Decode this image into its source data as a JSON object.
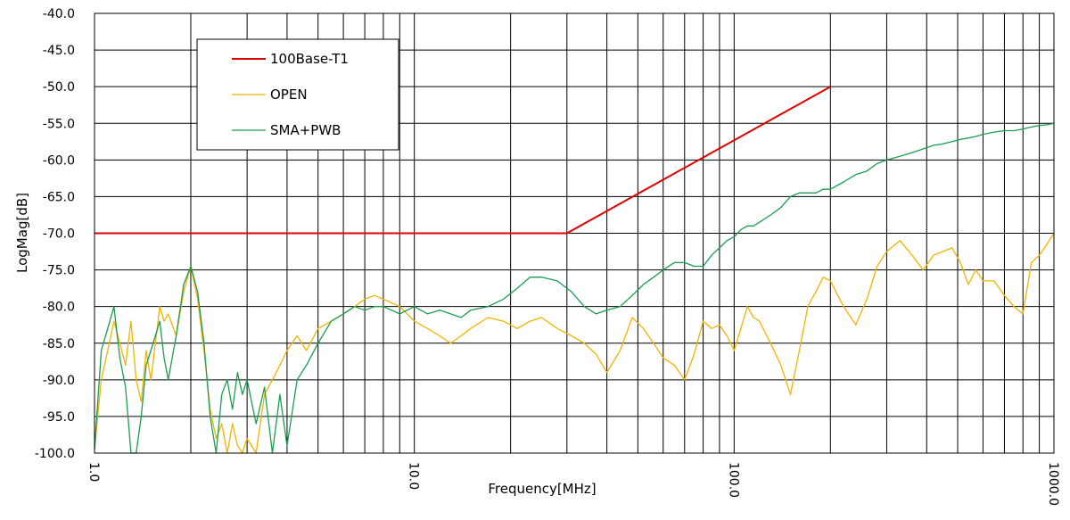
{
  "chart_data": {
    "type": "line",
    "title": "",
    "xlabel": "Frequency[MHz]",
    "ylabel": "LogMag[dB]",
    "x_scale": "log",
    "xlim": [
      1.0,
      1000.0
    ],
    "ylim": [
      -100.0,
      -40.0
    ],
    "grid": true,
    "legend_position": "top-left",
    "x_ticks": [
      {
        "value": 1,
        "label": "1.0"
      },
      {
        "value": 10,
        "label": "10.0"
      },
      {
        "value": 100,
        "label": "100.0"
      },
      {
        "value": 1000,
        "label": "1000.0"
      }
    ],
    "y_ticks": [
      {
        "value": -40,
        "label": "-40.0"
      },
      {
        "value": -45,
        "label": "-45.0"
      },
      {
        "value": -50,
        "label": "-50.0"
      },
      {
        "value": -55,
        "label": "-55.0"
      },
      {
        "value": -60,
        "label": "-60.0"
      },
      {
        "value": -65,
        "label": "-65.0"
      },
      {
        "value": -70,
        "label": "-70.0"
      },
      {
        "value": -75,
        "label": "-75.0"
      },
      {
        "value": -80,
        "label": "-80.0"
      },
      {
        "value": -85,
        "label": "-85.0"
      },
      {
        "value": -90,
        "label": "-90.0"
      },
      {
        "value": -95,
        "label": "-95.0"
      },
      {
        "value": -100,
        "label": "-100.0"
      }
    ],
    "series": [
      {
        "name": "100Base-T1",
        "color": "#e00000",
        "x": [
          1.0,
          30.0,
          200.0
        ],
        "y": [
          -70.0,
          -70.0,
          -50.0
        ]
      },
      {
        "name": "OPEN",
        "color": "#f0b400",
        "x": [
          1.0,
          1.05,
          1.1,
          1.15,
          1.2,
          1.25,
          1.3,
          1.35,
          1.4,
          1.45,
          1.5,
          1.55,
          1.6,
          1.65,
          1.7,
          1.8,
          1.9,
          2.0,
          2.1,
          2.2,
          2.3,
          2.4,
          2.5,
          2.6,
          2.7,
          2.8,
          2.9,
          3.0,
          3.2,
          3.4,
          3.6,
          3.8,
          4.0,
          4.3,
          4.6,
          5.0,
          5.5,
          6.0,
          6.5,
          7.0,
          7.5,
          8.0,
          9.0,
          10.0,
          11.0,
          12.0,
          13.0,
          14.0,
          15.0,
          17.0,
          19.0,
          21.0,
          23.0,
          25.0,
          28.0,
          31.0,
          34.0,
          37.0,
          40.0,
          44.0,
          48.0,
          52.0,
          56.0,
          60.0,
          65.0,
          70.0,
          75.0,
          80.0,
          85.0,
          90.0,
          95.0,
          100.0,
          105.0,
          110.0,
          115.0,
          120.0,
          130.0,
          140.0,
          150.0,
          160.0,
          170.0,
          180.0,
          190.0,
          200.0,
          220.0,
          240.0,
          260.0,
          280.0,
          300.0,
          330.0,
          360.0,
          390.0,
          420.0,
          450.0,
          480.0,
          510.0,
          540.0,
          570.0,
          600.0,
          650.0,
          700.0,
          750.0,
          800.0,
          850.0,
          900.0,
          950.0,
          1000.0
        ],
        "y": [
          -99.5,
          -90.0,
          -86.0,
          -82.0,
          -85.0,
          -88.0,
          -82.0,
          -90.0,
          -93.0,
          -86.0,
          -90.0,
          -85.0,
          -80.0,
          -82.0,
          -81.0,
          -84.0,
          -78.0,
          -74.5,
          -79.0,
          -86.0,
          -94.0,
          -98.0,
          -96.0,
          -100.0,
          -96.0,
          -99.0,
          -100.0,
          -98.0,
          -100.0,
          -92.0,
          -90.0,
          -88.0,
          -86.0,
          -84.0,
          -86.0,
          -83.0,
          -82.0,
          -81.0,
          -80.0,
          -79.0,
          -78.5,
          -79.0,
          -80.0,
          -82.0,
          -83.0,
          -84.0,
          -85.0,
          -84.0,
          -83.0,
          -81.5,
          -82.0,
          -83.0,
          -82.0,
          -81.5,
          -83.0,
          -84.0,
          -85.0,
          -86.5,
          -89.0,
          -86.0,
          -81.5,
          -83.0,
          -85.0,
          -87.0,
          -88.0,
          -90.0,
          -86.5,
          -82.0,
          -83.0,
          -82.5,
          -84.0,
          -86.0,
          -83.0,
          -80.0,
          -81.5,
          -82.0,
          -85.0,
          -88.0,
          -92.0,
          -86.0,
          -80.0,
          -78.0,
          -76.0,
          -76.5,
          -80.0,
          -82.5,
          -79.0,
          -74.5,
          -72.5,
          -71.0,
          -73.0,
          -75.0,
          -73.0,
          -72.5,
          -72.0,
          -74.0,
          -77.0,
          -75.0,
          -76.5,
          -76.5,
          -78.5,
          -80.0,
          -81.0,
          -74.0,
          -73.0,
          -71.5,
          -70.0
        ]
      },
      {
        "name": "SMA+PWB",
        "color": "#1a9e50",
        "x": [
          1.0,
          1.05,
          1.1,
          1.15,
          1.2,
          1.25,
          1.3,
          1.35,
          1.4,
          1.45,
          1.5,
          1.55,
          1.6,
          1.65,
          1.7,
          1.8,
          1.9,
          2.0,
          2.1,
          2.2,
          2.3,
          2.4,
          2.5,
          2.6,
          2.7,
          2.8,
          2.9,
          3.0,
          3.2,
          3.4,
          3.6,
          3.8,
          4.0,
          4.3,
          4.6,
          5.0,
          5.5,
          6.0,
          6.5,
          7.0,
          7.5,
          8.0,
          9.0,
          10.0,
          11.0,
          12.0,
          13.0,
          14.0,
          15.0,
          17.0,
          19.0,
          21.0,
          23.0,
          25.0,
          28.0,
          31.0,
          34.0,
          37.0,
          40.0,
          44.0,
          48.0,
          52.0,
          56.0,
          60.0,
          65.0,
          70.0,
          75.0,
          80.0,
          85.0,
          90.0,
          95.0,
          100.0,
          105.0,
          110.0,
          115.0,
          120.0,
          130.0,
          140.0,
          150.0,
          160.0,
          170.0,
          180.0,
          190.0,
          200.0,
          220.0,
          240.0,
          260.0,
          280.0,
          300.0,
          330.0,
          360.0,
          390.0,
          420.0,
          450.0,
          480.0,
          510.0,
          540.0,
          570.0,
          600.0,
          650.0,
          700.0,
          750.0,
          800.0,
          850.0,
          900.0,
          950.0,
          1000.0
        ],
        "y": [
          -99.5,
          -86.0,
          -83.0,
          -80.0,
          -87.0,
          -91.0,
          -100.0,
          -100.0,
          -95.0,
          -88.0,
          -86.0,
          -84.0,
          -82.0,
          -87.0,
          -90.0,
          -84.0,
          -77.0,
          -74.5,
          -78.0,
          -85.0,
          -95.0,
          -100.0,
          -92.0,
          -90.0,
          -94.0,
          -89.0,
          -92.0,
          -90.0,
          -96.0,
          -91.0,
          -100.0,
          -92.0,
          -99.0,
          -90.0,
          -88.0,
          -85.0,
          -82.0,
          -81.0,
          -80.0,
          -80.5,
          -80.0,
          -80.0,
          -81.0,
          -80.0,
          -81.0,
          -80.5,
          -81.0,
          -81.5,
          -80.5,
          -80.0,
          -79.0,
          -77.5,
          -76.0,
          -76.0,
          -76.5,
          -78.0,
          -80.0,
          -81.0,
          -80.5,
          -80.0,
          -78.5,
          -77.0,
          -76.0,
          -75.0,
          -74.0,
          -74.0,
          -74.5,
          -74.5,
          -73.0,
          -72.0,
          -71.0,
          -70.5,
          -69.5,
          -69.0,
          -69.0,
          -68.5,
          -67.5,
          -66.5,
          -65.0,
          -64.5,
          -64.5,
          -64.5,
          -64.0,
          -64.0,
          -63.0,
          -62.0,
          -61.5,
          -60.5,
          -60.0,
          -59.5,
          -59.0,
          -58.5,
          -58.0,
          -57.8,
          -57.5,
          -57.2,
          -57.0,
          -56.8,
          -56.5,
          -56.2,
          -56.0,
          -56.0,
          -55.8,
          -55.5,
          -55.3,
          -55.2,
          -55.0
        ]
      }
    ]
  }
}
